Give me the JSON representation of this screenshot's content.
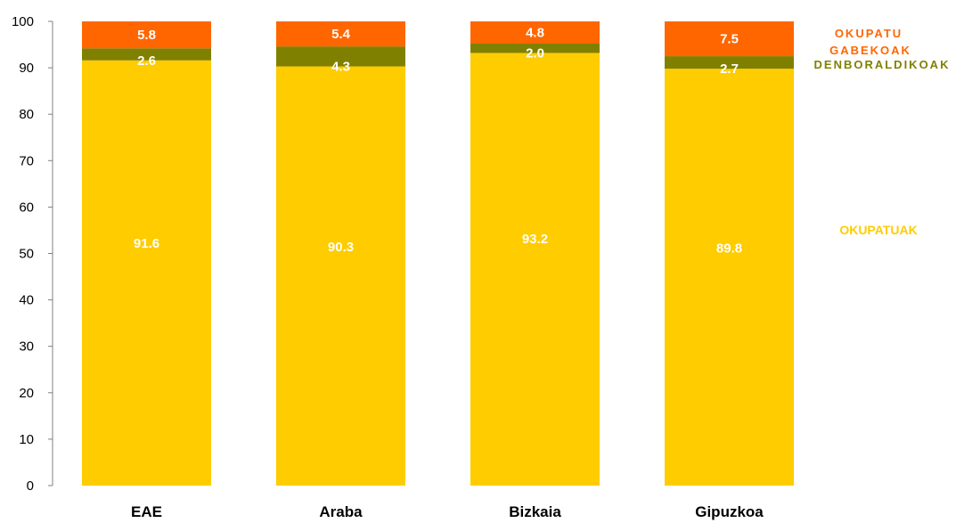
{
  "chart_data": {
    "type": "bar",
    "stacked": true,
    "categories": [
      "EAE",
      "Araba",
      "Bizkaia",
      "Gipuzkoa"
    ],
    "series": [
      {
        "name": "OKUPATUAK",
        "color": "#FFCC00",
        "values": [
          91.6,
          90.3,
          93.2,
          89.8
        ]
      },
      {
        "name": "DENBORALDIKOAK",
        "color": "#808000",
        "values": [
          2.6,
          4.3,
          2.0,
          2.7
        ]
      },
      {
        "name": "OKUPATU GABEKOAK",
        "color": "#FF6600",
        "values": [
          5.8,
          5.4,
          4.8,
          7.5
        ]
      }
    ],
    "legend": {
      "okupatu_line1": "OKUPATU",
      "okupatu_line2": "GABEKOAK",
      "denboraldikoak": "DENBORALDIKOAK",
      "okupatuak": "OKUPATUAK"
    },
    "ylim": [
      0,
      100
    ],
    "yticks": [
      "0",
      "10",
      "20",
      "30",
      "40",
      "50",
      "60",
      "70",
      "80",
      "90",
      "100"
    ],
    "grid": false,
    "legend_placement": "right"
  }
}
